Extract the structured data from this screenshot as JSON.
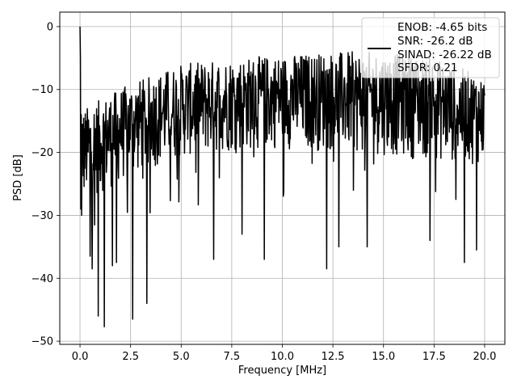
{
  "chart_data": {
    "type": "line",
    "xlabel": "Frequency [MHz]",
    "ylabel": "PSD [dB]",
    "xlim": [
      -1.0,
      21.0
    ],
    "ylim": [
      -50.5,
      2.3
    ],
    "xticks": [
      0.0,
      2.5,
      5.0,
      7.5,
      10.0,
      12.5,
      15.0,
      17.5,
      20.0
    ],
    "xtick_labels": [
      "0.0",
      "2.5",
      "5.0",
      "7.5",
      "10.0",
      "12.5",
      "15.0",
      "17.5",
      "20.0"
    ],
    "yticks": [
      0,
      -10,
      -20,
      -30,
      -40,
      -50
    ],
    "ytick_labels": [
      "0",
      "−10",
      "−20",
      "−30",
      "−40",
      "−50"
    ],
    "grid": true,
    "legend": {
      "placement": "top-right",
      "entries": [
        "ENOB: -4.65 bits",
        "SNR: -26.2 dB",
        "SINAD: -26.22 dB",
        "SFDR: 0.21"
      ]
    },
    "colors": {
      "line": "#000000",
      "grid": "#b0b0b0"
    },
    "series": [
      {
        "sample_count": 1000,
        "x_range": [
          0.0,
          20.0
        ],
        "peak": {
          "x": 0.0,
          "y": 0.0
        },
        "upper_envelope_db": {
          "x": [
            0.2,
            2.5,
            5.0,
            7.5,
            10.0,
            12.5,
            15.0,
            17.5,
            20.0
          ],
          "y": [
            -13,
            -9,
            -6,
            -5,
            -4.5,
            -4,
            -4,
            -5,
            -8
          ]
        },
        "lower_envelope_db": {
          "x": [
            0.2,
            2.5,
            5.0,
            7.5,
            10.0,
            12.5,
            15.0,
            17.5,
            20.0
          ],
          "y": [
            -28,
            -24,
            -21,
            -20,
            -19.5,
            -20,
            -20.5,
            -21.5,
            -22
          ]
        },
        "notches": [
          {
            "x": 0.5,
            "y": -36.5
          },
          {
            "x": 0.6,
            "y": -38.5
          },
          {
            "x": 0.9,
            "y": -46
          },
          {
            "x": 1.2,
            "y": -47.7
          },
          {
            "x": 1.6,
            "y": -38
          },
          {
            "x": 1.8,
            "y": -37.5
          },
          {
            "x": 2.6,
            "y": -46.5
          },
          {
            "x": 3.3,
            "y": -44
          },
          {
            "x": 6.6,
            "y": -37
          },
          {
            "x": 8.0,
            "y": -33
          },
          {
            "x": 9.1,
            "y": -37
          },
          {
            "x": 12.2,
            "y": -38.5
          },
          {
            "x": 12.8,
            "y": -35
          },
          {
            "x": 14.2,
            "y": -35
          },
          {
            "x": 17.3,
            "y": -34
          },
          {
            "x": 19.0,
            "y": -37.5
          },
          {
            "x": 19.6,
            "y": -35.5
          }
        ]
      }
    ]
  }
}
